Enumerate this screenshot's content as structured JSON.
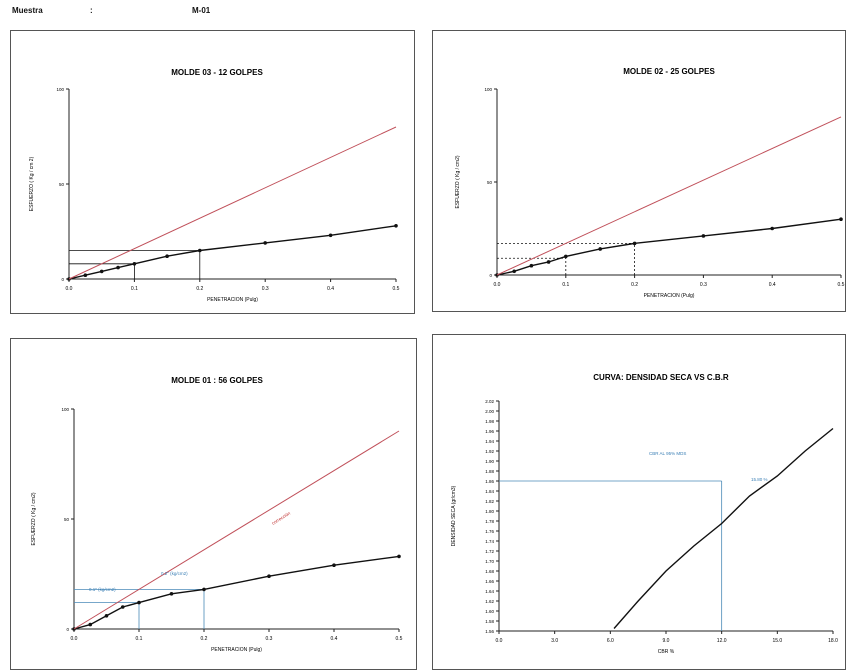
{
  "header": {
    "sample_label": "Muestra",
    "separator": ":",
    "sample_value": "M-01"
  },
  "chart_data": [
    {
      "type": "line",
      "title": "MOLDE 03 - 12 GOLPES",
      "xlabel": "PENETRACION (Pulg)",
      "ylabel": "ESFUERZO ( Kg / cm 2)",
      "xlim": [
        0,
        0.5
      ],
      "ylim": [
        0,
        100
      ],
      "xticks": [
        "0.0",
        "0.1",
        "0.2",
        "0.3",
        "0.4",
        "0.5"
      ],
      "yticks": [
        "0",
        "50",
        "100"
      ],
      "series": [
        {
          "values": [
            [
              0,
              0
            ],
            [
              0.025,
              2
            ],
            [
              0.05,
              4
            ],
            [
              0.075,
              6
            ],
            [
              0.1,
              8
            ],
            [
              0.15,
              12
            ],
            [
              0.2,
              15
            ],
            [
              0.3,
              19
            ],
            [
              0.4,
              23
            ],
            [
              0.5,
              28
            ]
          ]
        },
        {
          "values": [
            [
              0,
              0
            ],
            [
              0.5,
              80
            ]
          ]
        }
      ],
      "reference_lines": {
        "x": [
          0.1,
          0.2
        ],
        "y": [
          8,
          15
        ]
      },
      "colors": {
        "test_curve": "#111111",
        "correction_line": "#c0505a",
        "guide": "#111111"
      }
    },
    {
      "type": "line",
      "title": "MOLDE 02 - 25 GOLPES",
      "xlabel": "PENETRACION (Pulg)",
      "ylabel": "ESFUERZO ( Kg / cm2)",
      "xlim": [
        0,
        0.5
      ],
      "ylim": [
        0,
        100
      ],
      "xticks": [
        "0.0",
        "0.1",
        "0.2",
        "0.3",
        "0.4",
        "0.5"
      ],
      "yticks": [
        "0",
        "50",
        "100"
      ],
      "series": [
        {
          "values": [
            [
              0,
              0
            ],
            [
              0.025,
              2
            ],
            [
              0.05,
              5
            ],
            [
              0.075,
              7
            ],
            [
              0.1,
              10
            ],
            [
              0.15,
              14
            ],
            [
              0.2,
              17
            ],
            [
              0.3,
              21
            ],
            [
              0.4,
              25
            ],
            [
              0.5,
              30
            ]
          ]
        },
        {
          "values": [
            [
              0,
              0
            ],
            [
              0.5,
              85
            ]
          ]
        }
      ],
      "reference_lines": {
        "x": [
          0.1,
          0.2
        ],
        "y": [
          9,
          17
        ]
      },
      "colors": {
        "test_curve": "#111111",
        "correction_line": "#c0505a",
        "guide": "#111111"
      }
    },
    {
      "type": "line",
      "title": "MOLDE 01 : 56 GOLPES",
      "xlabel": "PENETRACION (Pulg)",
      "ylabel": "ESFUERZO ( Kg / cm2)",
      "xlim": [
        0,
        0.5
      ],
      "ylim": [
        0,
        100
      ],
      "xticks": [
        "0.0",
        "0.1",
        "0.2",
        "0.3",
        "0.4",
        "0.5"
      ],
      "yticks": [
        "0",
        "50",
        "100"
      ],
      "series": [
        {
          "values": [
            [
              0,
              0
            ],
            [
              0.025,
              2
            ],
            [
              0.05,
              6
            ],
            [
              0.075,
              10
            ],
            [
              0.1,
              12
            ],
            [
              0.15,
              16
            ],
            [
              0.2,
              18
            ],
            [
              0.3,
              24
            ],
            [
              0.4,
              29
            ],
            [
              0.5,
              33
            ]
          ]
        },
        {
          "values": [
            [
              0,
              0
            ],
            [
              0.5,
              90
            ]
          ]
        }
      ],
      "reference_lines": {
        "x": [
          0.1,
          0.2
        ],
        "y": [
          12,
          18
        ]
      },
      "annotations": [
        "corrección",
        "0.1\" (kg/cm2)",
        "0.2\" (kg/cm2)"
      ],
      "colors": {
        "test_curve": "#111111",
        "correction_line": "#c0505a",
        "guide": "#4a8ab8",
        "annotation": "#3a7fb5",
        "annotation_red": "#c03030"
      }
    },
    {
      "type": "line",
      "title": "CURVA: DENSIDAD SECA VS C.B.R",
      "xlabel": "CBR %",
      "ylabel": "DENSIDAD SECA (gr/cm3)",
      "xlim": [
        0,
        18
      ],
      "ylim": [
        1.56,
        2.02
      ],
      "xticks": [
        "0.0",
        "3.0",
        "6.0",
        "9.0",
        "12.0",
        "15.0",
        "18.0"
      ],
      "yticks": [
        "1.56",
        "1.58",
        "1.60",
        "1.62",
        "1.64",
        "1.66",
        "1.68",
        "1.70",
        "1.72",
        "1.74",
        "1.76",
        "1.78",
        "1.80",
        "1.82",
        "1.84",
        "1.86",
        "1.88",
        "1.90",
        "1.92",
        "1.94",
        "1.96",
        "1.98",
        "2.00",
        "2.02"
      ],
      "series": [
        {
          "values": [
            [
              6.2,
              1.565
            ],
            [
              7.5,
              1.62
            ],
            [
              9,
              1.68
            ],
            [
              10.5,
              1.73
            ],
            [
              12,
              1.775
            ],
            [
              13.5,
              1.83
            ],
            [
              15,
              1.87
            ],
            [
              16.5,
              1.92
            ],
            [
              18,
              1.965
            ]
          ]
        }
      ],
      "reference_lines": {
        "x": [
          12
        ],
        "y": [
          1.86
        ]
      },
      "annotations": [
        "CBR AL 95% MDS",
        "15.80 %"
      ],
      "colors": {
        "curve": "#111111",
        "guide": "#4a8ab8",
        "annotation": "#3a7fb5"
      }
    }
  ]
}
